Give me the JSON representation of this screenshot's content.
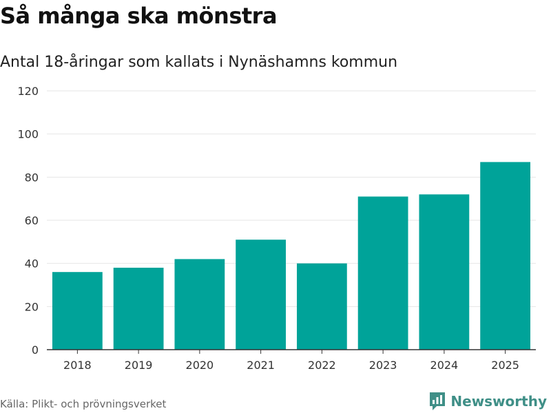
{
  "header": {
    "title": "Så många ska mönstra",
    "subtitle": "Antal 18-åringar som kallats i Nynäshamns kommun"
  },
  "footer": {
    "source": "Källa: Plikt- och prövningsverket",
    "brand": "Newsworthy",
    "brand_icon": "bar-chart-speech-bubble-icon"
  },
  "colors": {
    "bar": "#00a399",
    "grid": "#e6e6e6",
    "axis": "#333333",
    "brand": "#3f8f87"
  },
  "chart_data": {
    "type": "bar",
    "title": "Så många ska mönstra",
    "subtitle": "Antal 18-åringar som kallats i Nynäshamns kommun",
    "xlabel": "",
    "ylabel": "",
    "categories": [
      "2018",
      "2019",
      "2020",
      "2021",
      "2022",
      "2023",
      "2024",
      "2025"
    ],
    "values": [
      36,
      38,
      42,
      51,
      40,
      71,
      72,
      87
    ],
    "ylim": [
      0,
      120
    ],
    "yticks": [
      0,
      20,
      40,
      60,
      80,
      100,
      120
    ],
    "grid": true,
    "legend": "none"
  }
}
